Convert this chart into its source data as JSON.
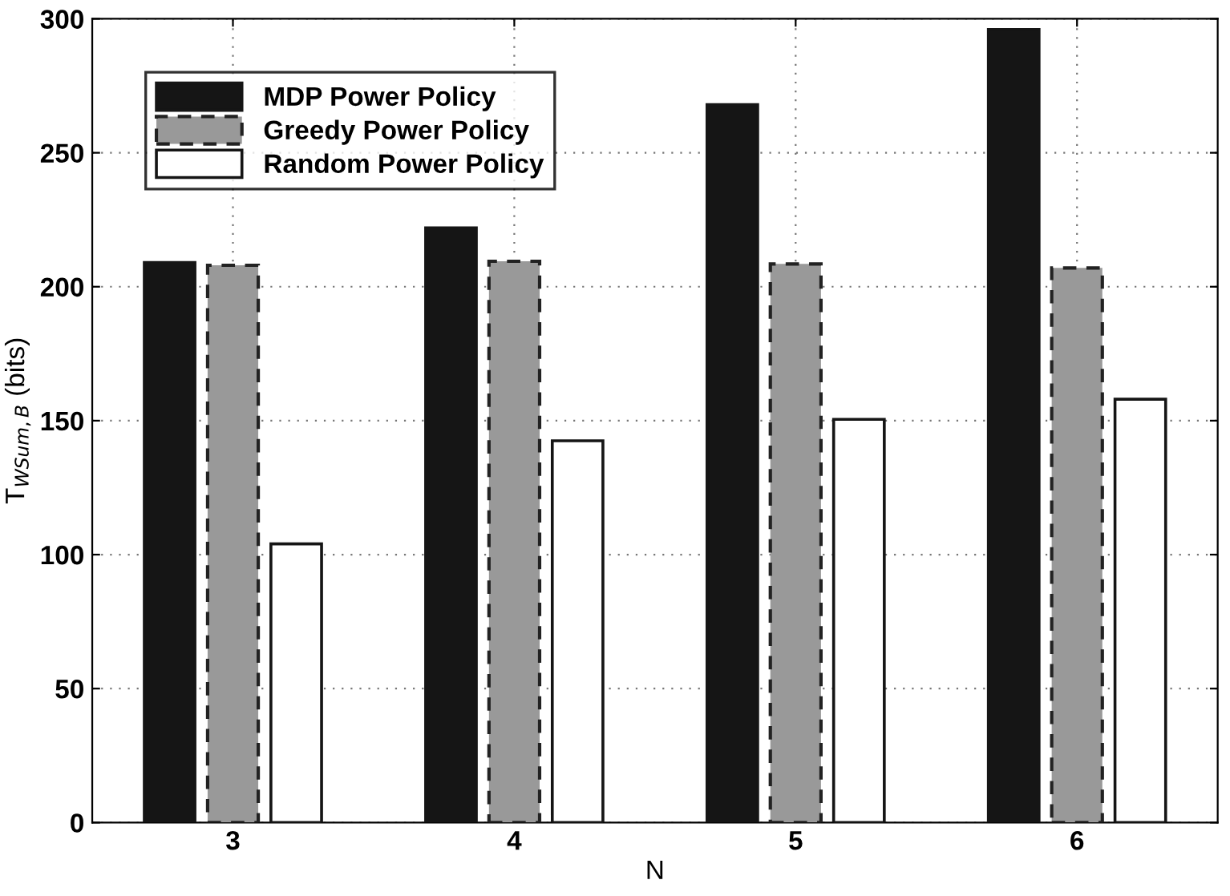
{
  "chart_data": {
    "type": "bar",
    "xlabel": "N",
    "ylabel": "T$_{WSum,B}$ (bits)",
    "categories": [
      "3",
      "4",
      "5",
      "6"
    ],
    "series": [
      {
        "name": "MDP Power Policy",
        "color": "#151515",
        "values": [
          209,
          222,
          268,
          296
        ]
      },
      {
        "name": "Greedy Power Policy",
        "color": "#999999",
        "values": [
          208,
          209.5,
          208.5,
          207
        ],
        "line_style": "dashed"
      },
      {
        "name": "Random Power Policy",
        "color": "#ffffff",
        "values": [
          104,
          142.5,
          150.5,
          158
        ]
      }
    ],
    "ylim": [
      0,
      300
    ],
    "yticks": [
      0,
      50,
      100,
      150,
      200,
      250,
      300
    ],
    "grid": true,
    "legend": "top left"
  }
}
